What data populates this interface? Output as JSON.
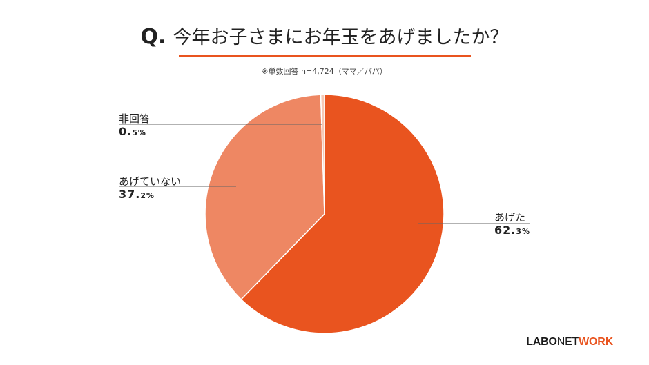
{
  "header": {
    "q_prefix": "Q.",
    "question": "今年お子さまにお年玉をあげましたか？",
    "note": "※単数回答 n=4,724（ママ／パパ）"
  },
  "colors": {
    "accent": "#E9541F",
    "rule": "#E9541F"
  },
  "chart_data": {
    "type": "pie",
    "start": "12 o'clock, clockwise",
    "slices": [
      {
        "label": "あげた",
        "value": 62.3,
        "value_text": "62.",
        "value_small": "3%",
        "color": "#E9541F"
      },
      {
        "label": "あげていない",
        "value": 37.2,
        "value_text": "37.",
        "value_small": "2%",
        "color": "#EE8763"
      },
      {
        "label": "非回答",
        "value": 0.5,
        "value_text": "0.",
        "value_small": "5%",
        "color": "#F6C8B4"
      }
    ]
  },
  "brand": {
    "logo_part1": "LABO",
    "logo_part2": "NET",
    "logo_part3": "WORK",
    "logo_color_main": "#1A1A1A",
    "logo_color_accent": "#E9541F"
  }
}
